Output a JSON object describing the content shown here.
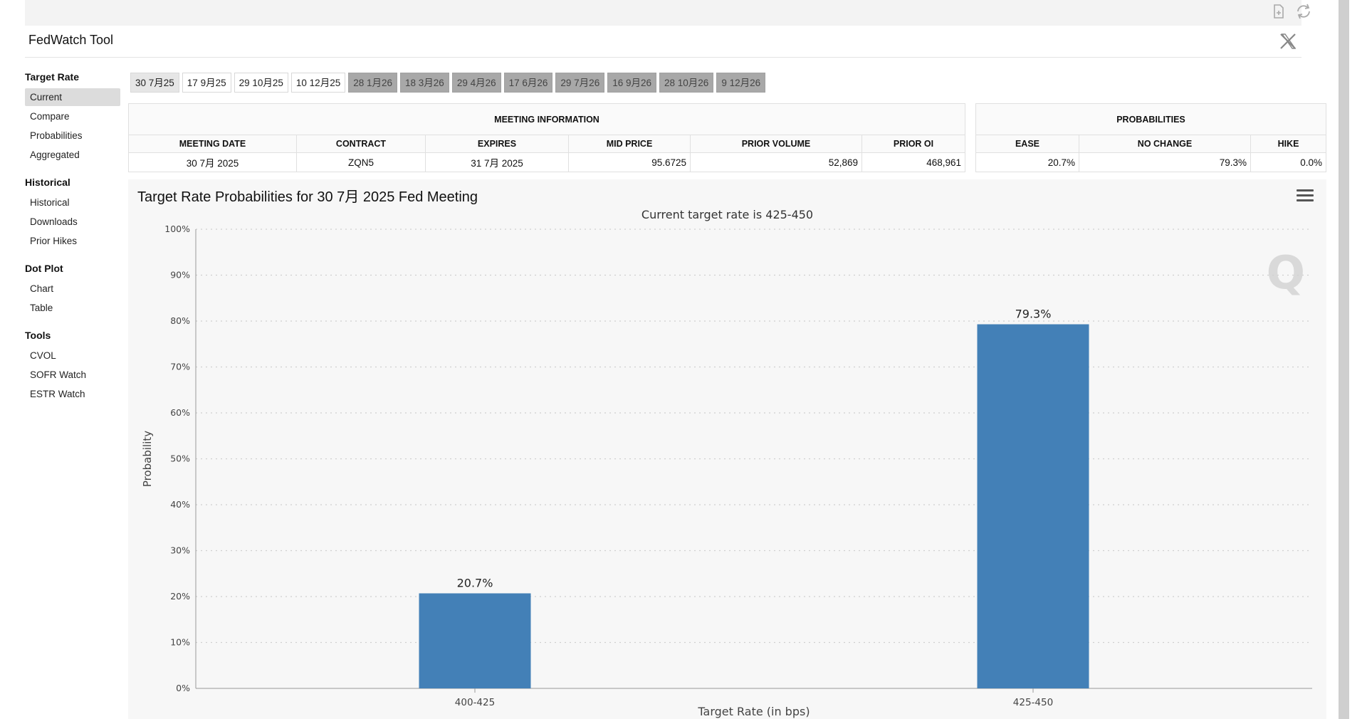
{
  "header": {
    "title": "FedWatch Tool"
  },
  "sidebar": {
    "groups": [
      {
        "title": "Target Rate",
        "items": [
          "Current",
          "Compare",
          "Probabilities",
          "Aggregated"
        ]
      },
      {
        "title": "Historical",
        "items": [
          "Historical",
          "Downloads",
          "Prior Hikes"
        ]
      },
      {
        "title": "Dot Plot",
        "items": [
          "Chart",
          "Table"
        ]
      },
      {
        "title": "Tools",
        "items": [
          "CVOL",
          "SOFR Watch",
          "ESTR Watch"
        ]
      }
    ]
  },
  "meeting_tabs": [
    {
      "label": "30 7月25",
      "state": "active"
    },
    {
      "label": "17 9月25",
      "state": "normal"
    },
    {
      "label": "29 10月25",
      "state": "normal"
    },
    {
      "label": "10 12月25",
      "state": "normal"
    },
    {
      "label": "28 1月26",
      "state": "disabled"
    },
    {
      "label": "18 3月26",
      "state": "disabled"
    },
    {
      "label": "29 4月26",
      "state": "disabled"
    },
    {
      "label": "17 6月26",
      "state": "disabled"
    },
    {
      "label": "29 7月26",
      "state": "disabled"
    },
    {
      "label": "16 9月26",
      "state": "disabled"
    },
    {
      "label": "28 10月26",
      "state": "disabled"
    },
    {
      "label": "9 12月26",
      "state": "disabled"
    }
  ],
  "meeting_info": {
    "caption": "MEETING INFORMATION",
    "headers": [
      "MEETING DATE",
      "CONTRACT",
      "EXPIRES",
      "MID PRICE",
      "PRIOR VOLUME",
      "PRIOR OI"
    ],
    "values": [
      "30 7月 2025",
      "ZQN5",
      "31 7月 2025",
      "95.6725",
      "52,869",
      "468,961"
    ]
  },
  "probabilities": {
    "caption": "PROBABILITIES",
    "headers": [
      "EASE",
      "NO CHANGE",
      "HIKE"
    ],
    "values": [
      "20.7%",
      "79.3%",
      "0.0%"
    ]
  },
  "chart": {
    "title": "Target Rate Probabilities for 30 7月 2025 Fed Meeting",
    "subtitle": "Current target rate is 425-450",
    "watermark": "Q"
  },
  "chart_data": {
    "type": "bar",
    "categories": [
      "400-425",
      "425-450"
    ],
    "values": [
      20.7,
      79.3
    ],
    "data_labels": [
      "20.7%",
      "79.3%"
    ],
    "xlabel": "Target Rate (in bps)",
    "ylabel": "Probability",
    "ylim": [
      0,
      100
    ],
    "yticks": [
      "0%",
      "10%",
      "20%",
      "30%",
      "40%",
      "50%",
      "60%",
      "70%",
      "80%",
      "90%",
      "100%"
    ],
    "grid": true,
    "bar_color": "#4380b7"
  }
}
